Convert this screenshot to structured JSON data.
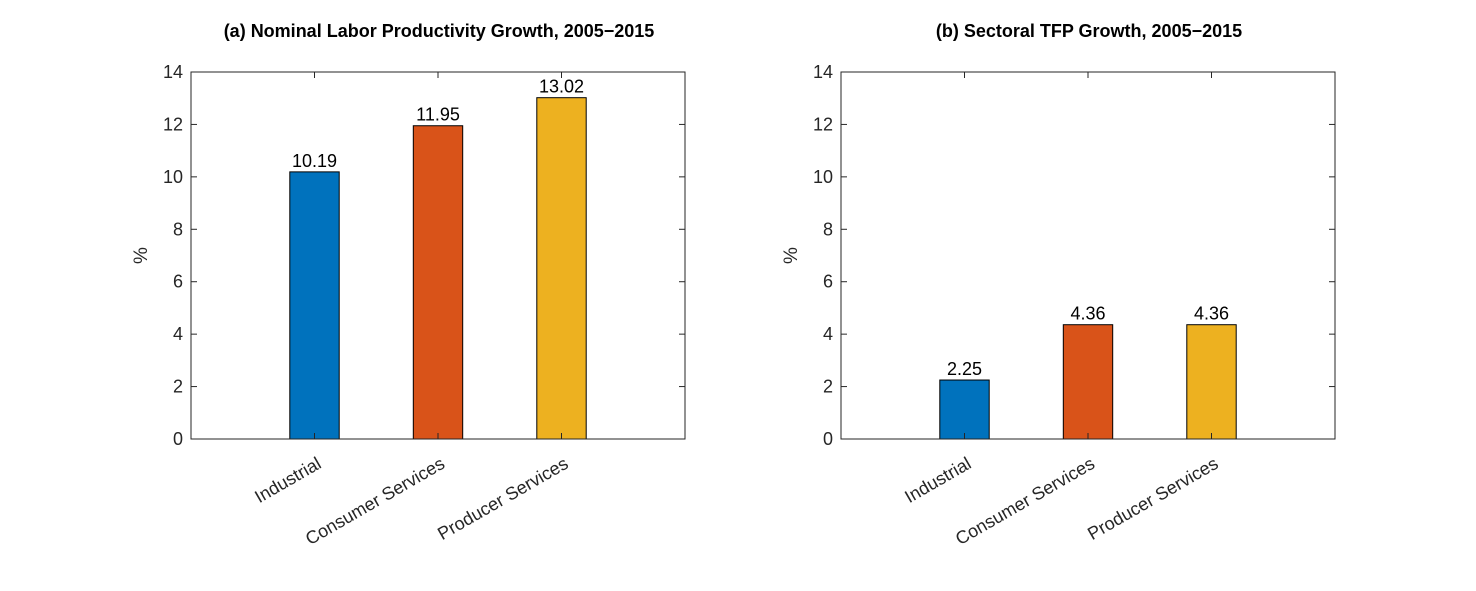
{
  "chart_data": [
    {
      "type": "bar",
      "title": "(a) Nominal Labor Productivity Growth, 2005−2015",
      "categories": [
        "Industrial",
        "Consumer Services",
        "Producer Services"
      ],
      "values": [
        10.19,
        11.95,
        13.02
      ],
      "value_labels": [
        "10.19",
        "11.95",
        "13.02"
      ],
      "colors": [
        "#0072BD",
        "#D95319",
        "#EDB120"
      ],
      "ylabel": "%",
      "xlabel": "",
      "ylim": [
        0,
        14
      ],
      "yticks": [
        0,
        2,
        4,
        6,
        8,
        10,
        12,
        14
      ],
      "grid": false,
      "legend": "none"
    },
    {
      "type": "bar",
      "title": "(b) Sectoral TFP Growth, 2005−2015",
      "categories": [
        "Industrial",
        "Consumer Services",
        "Producer Services"
      ],
      "values": [
        2.25,
        4.36,
        4.36
      ],
      "value_labels": [
        "2.25",
        "4.36",
        "4.36"
      ],
      "colors": [
        "#0072BD",
        "#D95319",
        "#EDB120"
      ],
      "ylabel": "%",
      "xlabel": "",
      "ylim": [
        0,
        14
      ],
      "yticks": [
        0,
        2,
        4,
        6,
        8,
        10,
        12,
        14
      ],
      "grid": false,
      "legend": "none"
    }
  ]
}
